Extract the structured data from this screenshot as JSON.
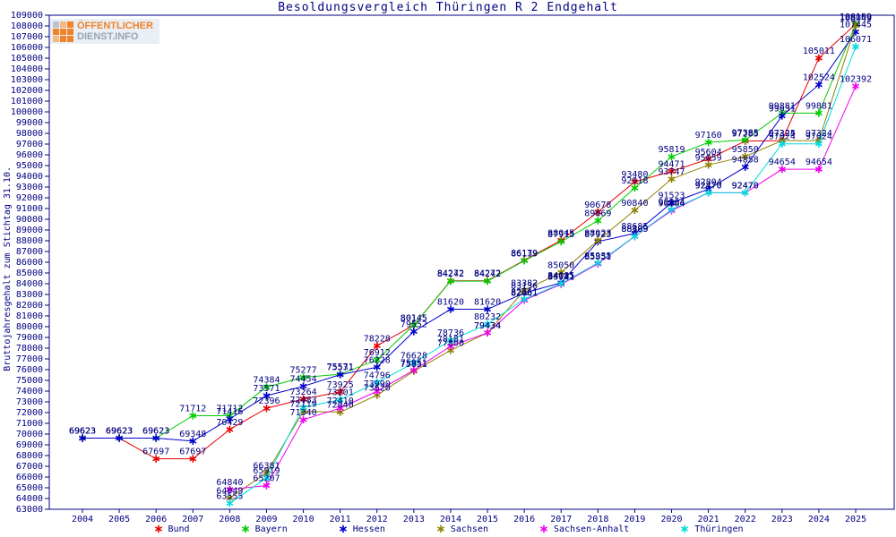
{
  "title": "Besoldungsvergleich Thüringen R 2 Endgehalt",
  "logo": {
    "line1": "ÖFFENTLICHER",
    "line2": "DIENST.INFO",
    "text_color_1": "#f08228",
    "text_color_2": "#9aa4b0",
    "background": "#e9eff5",
    "square_color": "#f08228"
  },
  "y_axis_title": "Bruttojahresgehalt zum Stichtag 31.10.",
  "colors": {
    "frame": "#000080",
    "text": "#000080",
    "background": "#ffffff"
  },
  "chart_data": {
    "type": "line",
    "title": "Besoldungsvergleich Thüringen R 2 Endgehalt",
    "xlabel": "",
    "ylabel": "Bruttojahresgehalt zum Stichtag 31.10.",
    "x": [
      2004,
      2005,
      2006,
      2007,
      2008,
      2009,
      2010,
      2011,
      2012,
      2013,
      2014,
      2015,
      2016,
      2017,
      2018,
      2019,
      2020,
      2021,
      2022,
      2023,
      2024,
      2025
    ],
    "ylim": [
      63000,
      109000
    ],
    "y_tick_step": 1000,
    "grid": false,
    "marker": "asterisk",
    "point_labels": true,
    "legend_position": "bottom",
    "series": [
      {
        "name": "Bund",
        "color": "#e60000",
        "values": [
          69623,
          69623,
          67697,
          67697,
          70429,
          72396,
          73264,
          73925,
          78228,
          80145,
          84272,
          84272,
          86179,
          88045,
          90678,
          93480,
          94471,
          95604,
          97285,
          97325,
          105011,
          108169
        ]
      },
      {
        "name": "Bayern",
        "color": "#00cc00",
        "values": [
          69623,
          69623,
          69623,
          71712,
          71712,
          74384,
          75277,
          75571,
          76912,
          80145,
          84242,
          84242,
          86139,
          87915,
          89869,
          92918,
          95819,
          97160,
          97385,
          99881,
          99881,
          108159
        ]
      },
      {
        "name": "Hessen",
        "color": "#0000cc",
        "values": [
          69623,
          69623,
          69623,
          69348,
          71416,
          73571,
          74454,
          75531,
          76228,
          79552,
          81620,
          81620,
          83136,
          84085,
          87923,
          88685,
          91523,
          92804,
          94858,
          99631,
          102524,
          107445
        ]
      },
      {
        "name": "Sachsen",
        "color": "#8f8000",
        "values": [
          null,
          null,
          null,
          null,
          64049,
          66381,
          72119,
          72040,
          73620,
          75851,
          77800,
          79434,
          83382,
          85050,
          88023,
          90840,
          93747,
          95059,
          95850,
          97324,
          97324,
          108049
        ]
      },
      {
        "name": "Sachsen-Anhalt",
        "color": "#f000f0",
        "values": [
          null,
          null,
          null,
          null,
          64840,
          65207,
          71340,
          72410,
          73990,
          75951,
          78181,
          79434,
          82461,
          83941,
          85851,
          88399,
          90804,
          92470,
          92470,
          94654,
          94654,
          102392
        ]
      },
      {
        "name": "Thüringen",
        "color": "#00dcdc",
        "values": [
          null,
          null,
          null,
          null,
          63555,
          65919,
          72483,
          73201,
          74796,
          76628,
          78736,
          80232,
          82561,
          84011,
          85935,
          88409,
          90904,
          92470,
          92470,
          97024,
          97024,
          106071
        ]
      }
    ]
  }
}
